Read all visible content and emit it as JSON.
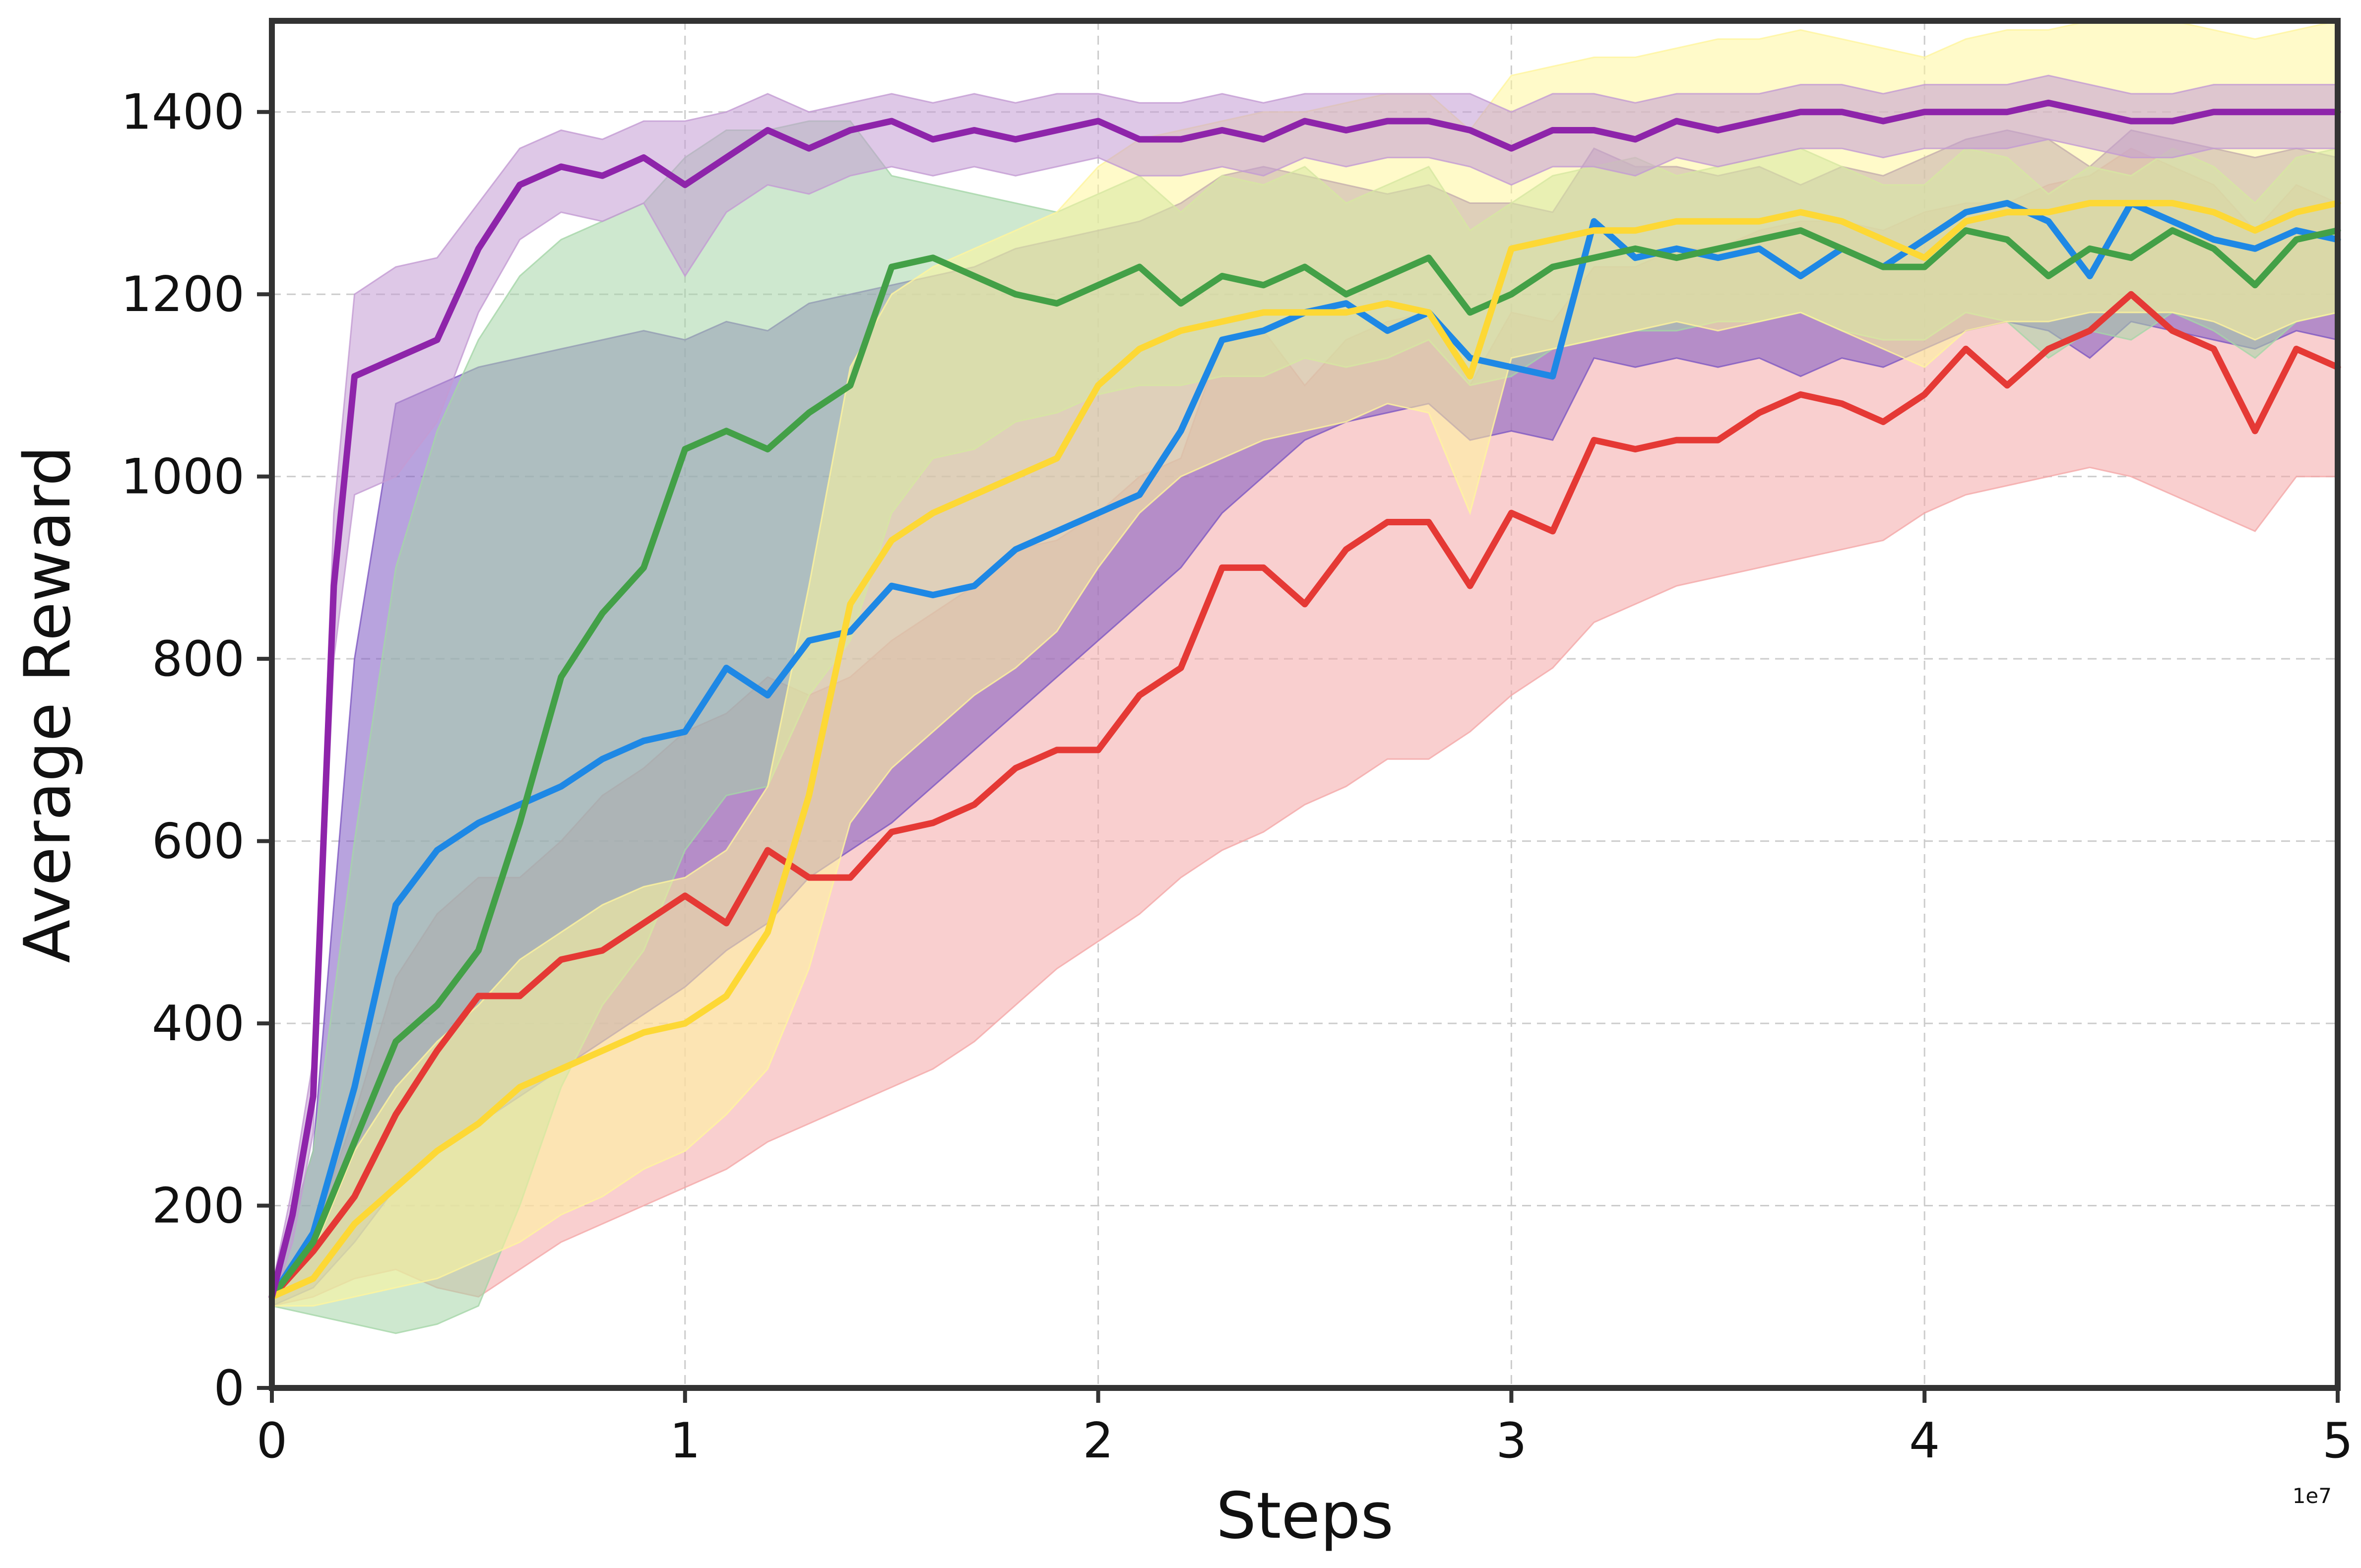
{
  "chart_data": {
    "type": "line",
    "title": "",
    "xlabel": "Steps",
    "ylabel": "Average Reward",
    "x_offset_label": "1e7",
    "xlim": [
      0,
      5
    ],
    "ylim": [
      0,
      1500
    ],
    "x_ticks": [
      0,
      1,
      2,
      3,
      4,
      5
    ],
    "x_tick_labels": [
      "0",
      "1",
      "2",
      "3",
      "4",
      "5"
    ],
    "y_ticks": [
      0,
      200,
      400,
      600,
      800,
      1000,
      1200,
      1400
    ],
    "y_tick_labels": [
      "0",
      "200",
      "400",
      "600",
      "800",
      "1000",
      "1200",
      "1400"
    ],
    "grid": true,
    "legend": "none",
    "shaded_band": "variability band around each series",
    "series": [
      {
        "color": "#f4a7a7",
        "line_color": "#e53935",
        "x": [
          0,
          0.1,
          0.2,
          0.3,
          0.4,
          0.5,
          0.6,
          0.7,
          0.8,
          0.9,
          1.0,
          1.1,
          1.2,
          1.3,
          1.4,
          1.5,
          1.6,
          1.7,
          1.8,
          1.9,
          2.0,
          2.1,
          2.2,
          2.3,
          2.4,
          2.5,
          2.6,
          2.7,
          2.8,
          2.9,
          3.0,
          3.1,
          3.2,
          3.3,
          3.4,
          3.5,
          3.6,
          3.7,
          3.8,
          3.9,
          4.0,
          4.1,
          4.2,
          4.3,
          4.4,
          4.5,
          4.6,
          4.7,
          4.8,
          4.9,
          5.0
        ],
        "y": [
          100,
          150,
          210,
          300,
          370,
          430,
          430,
          470,
          480,
          510,
          540,
          510,
          590,
          560,
          560,
          610,
          620,
          640,
          680,
          700,
          700,
          760,
          790,
          900,
          900,
          860,
          920,
          950,
          950,
          880,
          960,
          940,
          1040,
          1030,
          1040,
          1040,
          1070,
          1090,
          1080,
          1060,
          1090,
          1140,
          1100,
          1140,
          1160,
          1200,
          1160,
          1140,
          1050,
          1140,
          1120
        ],
        "lower": [
          90,
          100,
          120,
          130,
          110,
          100,
          130,
          160,
          180,
          200,
          220,
          240,
          270,
          290,
          310,
          330,
          350,
          380,
          420,
          460,
          490,
          520,
          560,
          590,
          610,
          640,
          660,
          690,
          690,
          720,
          760,
          790,
          840,
          860,
          880,
          890,
          900,
          910,
          920,
          930,
          960,
          980,
          990,
          1000,
          1010,
          1000,
          980,
          960,
          940,
          1000,
          1000
        ],
        "upper": [
          110,
          170,
          300,
          450,
          520,
          560,
          560,
          600,
          650,
          680,
          720,
          740,
          780,
          760,
          780,
          820,
          850,
          880,
          920,
          930,
          960,
          1000,
          1020,
          1150,
          1160,
          1100,
          1150,
          1170,
          1180,
          1100,
          1180,
          1170,
          1230,
          1230,
          1250,
          1250,
          1270,
          1280,
          1280,
          1270,
          1290,
          1300,
          1300,
          1320,
          1330,
          1360,
          1340,
          1320,
          1270,
          1320,
          1300
        ]
      },
      {
        "color": "#7e57c2",
        "line_color": "#1e88e5",
        "x": [
          0,
          0.1,
          0.2,
          0.3,
          0.4,
          0.5,
          0.6,
          0.7,
          0.8,
          0.9,
          1.0,
          1.1,
          1.2,
          1.3,
          1.4,
          1.5,
          1.6,
          1.7,
          1.8,
          1.9,
          2.0,
          2.1,
          2.2,
          2.3,
          2.4,
          2.5,
          2.6,
          2.7,
          2.8,
          2.9,
          3.0,
          3.1,
          3.2,
          3.3,
          3.4,
          3.5,
          3.6,
          3.7,
          3.8,
          3.9,
          4.0,
          4.1,
          4.2,
          4.3,
          4.4,
          4.5,
          4.6,
          4.7,
          4.8,
          4.9,
          5.0
        ],
        "y": [
          100,
          170,
          330,
          530,
          590,
          620,
          640,
          660,
          690,
          710,
          720,
          790,
          760,
          820,
          830,
          880,
          870,
          880,
          920,
          940,
          960,
          980,
          1050,
          1150,
          1160,
          1180,
          1190,
          1160,
          1180,
          1130,
          1120,
          1110,
          1280,
          1240,
          1250,
          1240,
          1250,
          1220,
          1250,
          1230,
          1260,
          1290,
          1300,
          1280,
          1220,
          1300,
          1280,
          1260,
          1250,
          1270,
          1260
        ],
        "lower": [
          90,
          110,
          160,
          220,
          260,
          290,
          320,
          350,
          380,
          410,
          440,
          480,
          510,
          560,
          590,
          620,
          660,
          700,
          740,
          780,
          820,
          860,
          900,
          960,
          1000,
          1040,
          1060,
          1070,
          1080,
          1040,
          1050,
          1040,
          1130,
          1120,
          1130,
          1120,
          1130,
          1110,
          1130,
          1120,
          1140,
          1160,
          1170,
          1160,
          1130,
          1170,
          1160,
          1150,
          1140,
          1160,
          1150
        ],
        "upper": [
          110,
          260,
          800,
          1080,
          1100,
          1120,
          1130,
          1140,
          1150,
          1160,
          1150,
          1170,
          1160,
          1190,
          1200,
          1210,
          1220,
          1230,
          1250,
          1260,
          1270,
          1280,
          1300,
          1330,
          1340,
          1330,
          1320,
          1310,
          1320,
          1300,
          1300,
          1290,
          1360,
          1340,
          1340,
          1330,
          1340,
          1320,
          1340,
          1330,
          1350,
          1370,
          1380,
          1370,
          1340,
          1380,
          1370,
          1360,
          1350,
          1360,
          1350
        ]
      },
      {
        "color": "#a5d6a7",
        "line_color": "#43a047",
        "x": [
          0,
          0.1,
          0.2,
          0.3,
          0.4,
          0.5,
          0.6,
          0.7,
          0.8,
          0.9,
          1.0,
          1.1,
          1.2,
          1.3,
          1.4,
          1.5,
          1.6,
          1.7,
          1.8,
          1.9,
          2.0,
          2.1,
          2.2,
          2.3,
          2.4,
          2.5,
          2.6,
          2.7,
          2.8,
          2.9,
          3.0,
          3.1,
          3.2,
          3.3,
          3.4,
          3.5,
          3.6,
          3.7,
          3.8,
          3.9,
          4.0,
          4.1,
          4.2,
          4.3,
          4.4,
          4.5,
          4.6,
          4.7,
          4.8,
          4.9,
          5.0
        ],
        "y": [
          100,
          160,
          270,
          380,
          420,
          480,
          620,
          780,
          850,
          900,
          1030,
          1050,
          1030,
          1070,
          1100,
          1230,
          1240,
          1220,
          1200,
          1190,
          1210,
          1230,
          1190,
          1220,
          1210,
          1230,
          1200,
          1220,
          1240,
          1180,
          1200,
          1230,
          1240,
          1250,
          1240,
          1250,
          1260,
          1270,
          1250,
          1230,
          1230,
          1270,
          1260,
          1220,
          1250,
          1240,
          1270,
          1250,
          1210,
          1260,
          1270
        ],
        "lower": [
          90,
          80,
          70,
          60,
          70,
          90,
          200,
          330,
          420,
          480,
          590,
          650,
          660,
          760,
          820,
          960,
          1020,
          1030,
          1060,
          1070,
          1090,
          1100,
          1100,
          1110,
          1110,
          1130,
          1120,
          1130,
          1150,
          1100,
          1110,
          1140,
          1150,
          1160,
          1160,
          1170,
          1170,
          1180,
          1160,
          1150,
          1150,
          1180,
          1170,
          1130,
          1160,
          1150,
          1180,
          1160,
          1130,
          1170,
          1180
        ],
        "upper": [
          110,
          260,
          600,
          900,
          1050,
          1150,
          1220,
          1260,
          1280,
          1300,
          1350,
          1380,
          1380,
          1390,
          1390,
          1330,
          1320,
          1310,
          1300,
          1290,
          1310,
          1330,
          1290,
          1330,
          1320,
          1340,
          1300,
          1320,
          1340,
          1270,
          1300,
          1330,
          1340,
          1350,
          1330,
          1340,
          1350,
          1360,
          1340,
          1320,
          1320,
          1360,
          1350,
          1310,
          1340,
          1330,
          1360,
          1340,
          1300,
          1350,
          1360
        ]
      },
      {
        "color": "#fff59d",
        "line_color": "#fdd835",
        "x": [
          0,
          0.1,
          0.2,
          0.3,
          0.4,
          0.5,
          0.6,
          0.7,
          0.8,
          0.9,
          1.0,
          1.1,
          1.2,
          1.3,
          1.4,
          1.5,
          1.6,
          1.7,
          1.8,
          1.9,
          2.0,
          2.1,
          2.2,
          2.3,
          2.4,
          2.5,
          2.6,
          2.7,
          2.8,
          2.9,
          3.0,
          3.1,
          3.2,
          3.3,
          3.4,
          3.5,
          3.6,
          3.7,
          3.8,
          3.9,
          4.0,
          4.1,
          4.2,
          4.3,
          4.4,
          4.5,
          4.6,
          4.7,
          4.8,
          4.9,
          5.0
        ],
        "y": [
          100,
          120,
          180,
          220,
          260,
          290,
          330,
          350,
          370,
          390,
          400,
          430,
          500,
          650,
          860,
          930,
          960,
          980,
          1000,
          1020,
          1100,
          1140,
          1160,
          1170,
          1180,
          1180,
          1180,
          1190,
          1180,
          1110,
          1250,
          1260,
          1270,
          1270,
          1280,
          1280,
          1280,
          1290,
          1280,
          1260,
          1240,
          1280,
          1290,
          1290,
          1300,
          1300,
          1300,
          1290,
          1270,
          1290,
          1300
        ],
        "lower": [
          90,
          90,
          100,
          110,
          120,
          140,
          160,
          190,
          210,
          240,
          260,
          300,
          350,
          460,
          620,
          680,
          720,
          760,
          790,
          830,
          900,
          960,
          1000,
          1020,
          1040,
          1050,
          1060,
          1080,
          1070,
          960,
          1130,
          1140,
          1150,
          1160,
          1170,
          1160,
          1170,
          1180,
          1160,
          1140,
          1120,
          1160,
          1170,
          1170,
          1180,
          1180,
          1180,
          1170,
          1150,
          1170,
          1180
        ],
        "upper": [
          110,
          150,
          260,
          330,
          380,
          420,
          470,
          500,
          530,
          550,
          560,
          590,
          660,
          880,
          1120,
          1200,
          1230,
          1250,
          1270,
          1290,
          1340,
          1370,
          1380,
          1390,
          1400,
          1400,
          1410,
          1420,
          1420,
          1380,
          1440,
          1450,
          1460,
          1460,
          1470,
          1480,
          1480,
          1490,
          1480,
          1470,
          1460,
          1480,
          1490,
          1490,
          1500,
          1500,
          1500,
          1490,
          1480,
          1490,
          1500
        ]
      },
      {
        "color": "#c39bd3",
        "line_color": "#8e24aa",
        "x": [
          0,
          0.05,
          0.1,
          0.15,
          0.2,
          0.3,
          0.4,
          0.5,
          0.6,
          0.7,
          0.8,
          0.9,
          1.0,
          1.1,
          1.2,
          1.3,
          1.4,
          1.5,
          1.6,
          1.7,
          1.8,
          1.9,
          2.0,
          2.1,
          2.2,
          2.3,
          2.4,
          2.5,
          2.6,
          2.7,
          2.8,
          2.9,
          3.0,
          3.1,
          3.2,
          3.3,
          3.4,
          3.5,
          3.6,
          3.7,
          3.8,
          3.9,
          4.0,
          4.1,
          4.2,
          4.3,
          4.4,
          4.5,
          4.6,
          4.7,
          4.8,
          4.9,
          5.0
        ],
        "y": [
          100,
          190,
          320,
          880,
          1110,
          1130,
          1150,
          1250,
          1320,
          1340,
          1330,
          1350,
          1320,
          1350,
          1380,
          1360,
          1380,
          1390,
          1370,
          1380,
          1370,
          1380,
          1390,
          1370,
          1370,
          1380,
          1370,
          1390,
          1380,
          1390,
          1390,
          1380,
          1360,
          1380,
          1380,
          1370,
          1390,
          1380,
          1390,
          1400,
          1400,
          1390,
          1400,
          1400,
          1400,
          1410,
          1400,
          1390,
          1390,
          1400,
          1400,
          1400,
          1400
        ],
        "lower": [
          90,
          160,
          280,
          800,
          980,
          1000,
          1060,
          1180,
          1260,
          1290,
          1280,
          1300,
          1220,
          1290,
          1320,
          1310,
          1330,
          1340,
          1330,
          1340,
          1330,
          1340,
          1350,
          1330,
          1330,
          1340,
          1330,
          1350,
          1340,
          1350,
          1350,
          1340,
          1320,
          1340,
          1340,
          1330,
          1350,
          1340,
          1350,
          1360,
          1360,
          1350,
          1360,
          1360,
          1360,
          1370,
          1360,
          1350,
          1350,
          1360,
          1360,
          1360,
          1360
        ],
        "upper": [
          110,
          220,
          360,
          960,
          1200,
          1230,
          1240,
          1300,
          1360,
          1380,
          1370,
          1390,
          1390,
          1400,
          1420,
          1400,
          1410,
          1420,
          1410,
          1420,
          1410,
          1420,
          1420,
          1410,
          1410,
          1420,
          1410,
          1420,
          1420,
          1420,
          1420,
          1420,
          1400,
          1420,
          1420,
          1410,
          1420,
          1420,
          1420,
          1430,
          1430,
          1420,
          1430,
          1430,
          1430,
          1440,
          1430,
          1420,
          1420,
          1430,
          1430,
          1430,
          1430
        ]
      }
    ]
  }
}
